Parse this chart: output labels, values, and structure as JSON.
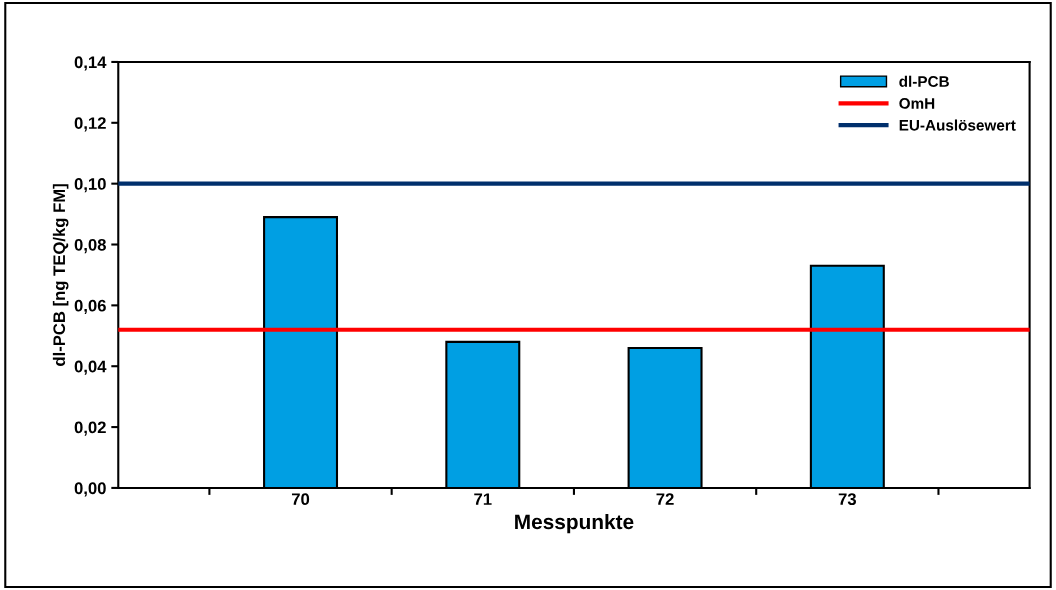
{
  "chart_data": {
    "type": "bar",
    "xlabel": "Messpunkte",
    "ylabel": "dl-PCB [ng TEQ/kg FM]",
    "categories": [
      null,
      "70",
      "71",
      "72",
      "73",
      null
    ],
    "series": [
      {
        "name": "dl-PCB",
        "color": "#009fe3",
        "values": [
          null,
          0.089,
          0.048,
          0.046,
          0.073,
          null
        ]
      }
    ],
    "ylim": [
      0,
      0.14
    ],
    "yticks": [
      {
        "value": 0,
        "label": "0,00"
      },
      {
        "value": 0.02,
        "label": "0,02"
      },
      {
        "value": 0.04,
        "label": "0,04"
      },
      {
        "value": 0.06,
        "label": "0,06"
      },
      {
        "value": 0.08,
        "label": "0,08"
      },
      {
        "value": 0.1,
        "label": "0,10"
      },
      {
        "value": 0.12,
        "label": "0,12"
      },
      {
        "value": 0.14,
        "label": "0,14"
      }
    ],
    "ref_lines": [
      {
        "axis": "y",
        "value": 0.052,
        "label": "OmH",
        "color": "#ff0000"
      },
      {
        "axis": "y",
        "value": 0.1,
        "label": "EU-Auslösewert",
        "color": "#002f6c"
      }
    ],
    "legend": "top right",
    "grid": false
  }
}
